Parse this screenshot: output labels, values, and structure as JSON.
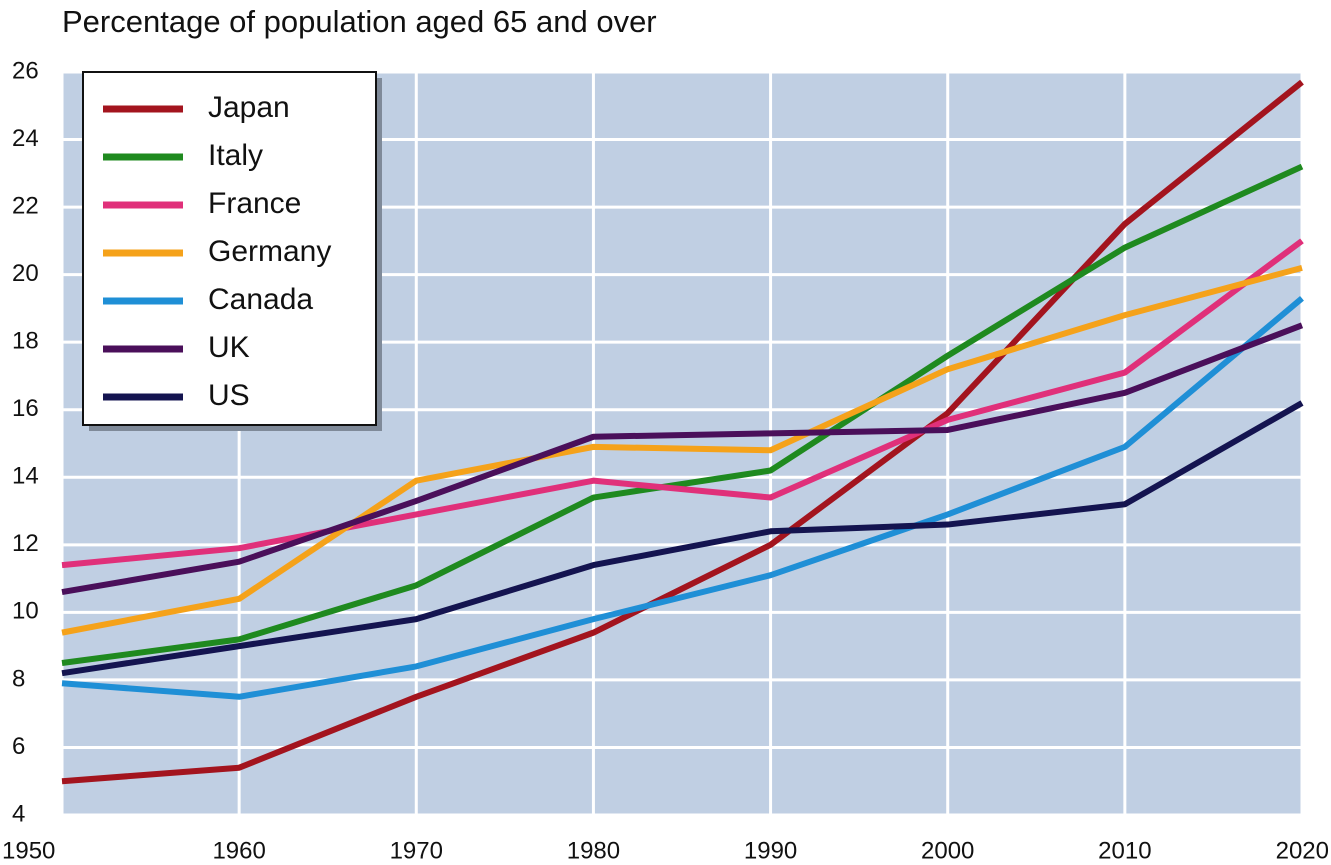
{
  "chart_data": {
    "type": "line",
    "title": "Percentage of population aged 65 and over",
    "x": [
      1950,
      1960,
      1970,
      1980,
      1990,
      2000,
      2010,
      2020
    ],
    "xlim": [
      1950,
      2020
    ],
    "xticks": [
      1950,
      1960,
      1970,
      1980,
      1990,
      2000,
      2010,
      2020
    ],
    "ylim": [
      4,
      26
    ],
    "yticks": [
      4,
      6,
      8,
      10,
      12,
      14,
      16,
      18,
      20,
      22,
      24,
      26
    ],
    "grid": true,
    "legend": "upper left",
    "series": [
      {
        "name": "Japan",
        "color": "#a3141e",
        "values": [
          5.0,
          5.4,
          7.5,
          9.4,
          12.0,
          15.9,
          21.5,
          25.7
        ]
      },
      {
        "name": "Italy",
        "color": "#1f8a1f",
        "values": [
          8.5,
          9.2,
          10.8,
          13.4,
          14.2,
          17.6,
          20.8,
          23.2
        ]
      },
      {
        "name": "France",
        "color": "#e0307a",
        "values": [
          11.4,
          11.9,
          12.9,
          13.9,
          13.4,
          15.7,
          17.1,
          21.0
        ]
      },
      {
        "name": "Germany",
        "color": "#f5a21a",
        "values": [
          9.4,
          10.4,
          13.9,
          14.9,
          14.8,
          17.2,
          18.8,
          20.2
        ]
      },
      {
        "name": "Canada",
        "color": "#1f8fd6",
        "values": [
          7.9,
          7.5,
          8.4,
          9.8,
          11.1,
          12.9,
          14.9,
          19.3
        ]
      },
      {
        "name": "UK",
        "color": "#4a0f5a",
        "values": [
          10.6,
          11.5,
          13.3,
          15.2,
          15.3,
          15.4,
          16.5,
          18.5
        ]
      },
      {
        "name": "US",
        "color": "#141450",
        "values": [
          8.2,
          9.0,
          9.8,
          11.4,
          12.4,
          12.6,
          13.2,
          16.2
        ]
      }
    ]
  }
}
